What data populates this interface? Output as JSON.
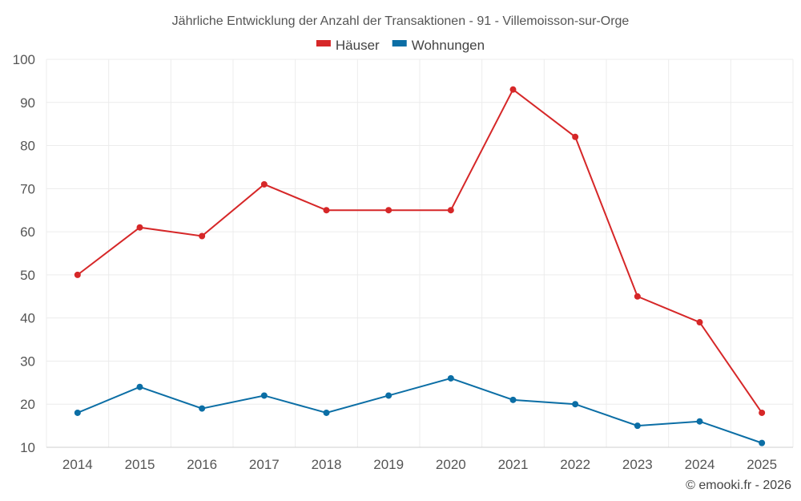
{
  "chart_data": {
    "type": "line",
    "title": "Jährliche Entwicklung der Anzahl der Transaktionen - 91 - Villemoisson-sur-Orge",
    "categories": [
      "2014",
      "2015",
      "2016",
      "2017",
      "2018",
      "2019",
      "2020",
      "2021",
      "2022",
      "2023",
      "2024",
      "2025"
    ],
    "series": [
      {
        "name": "Häuser",
        "color": "#d62728",
        "values": [
          50,
          61,
          59,
          71,
          65,
          65,
          65,
          93,
          82,
          45,
          39,
          18
        ]
      },
      {
        "name": "Wohnungen",
        "color": "#0b6ea5",
        "values": [
          18,
          24,
          19,
          22,
          18,
          22,
          26,
          21,
          20,
          15,
          16,
          11
        ]
      }
    ],
    "ylim": [
      10,
      100
    ],
    "yticks": [
      10,
      20,
      30,
      40,
      50,
      60,
      70,
      80,
      90,
      100
    ],
    "xlabel": "",
    "ylabel": "",
    "grid": true,
    "legend_position": "top-center"
  },
  "credit": "© emooki.fr - 2026"
}
